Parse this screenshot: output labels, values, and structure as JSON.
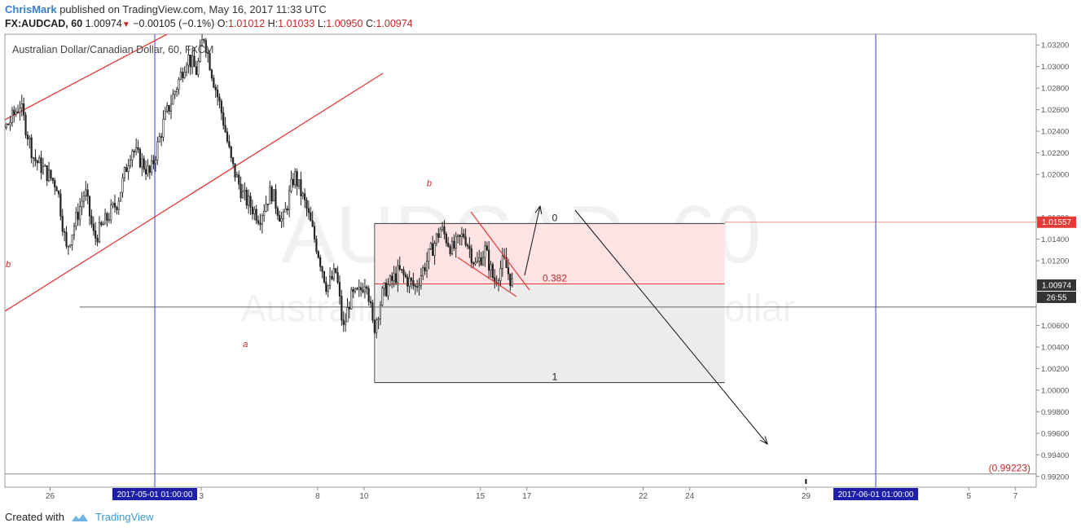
{
  "header": {
    "author": "ChrisMark",
    "published_text": "published on TradingView.com, May 16, 2017 11:33 UTC",
    "symbol": "FX:AUDCAD, 60",
    "last": "1.00974",
    "change": "−0.00105 (−0.1%)",
    "open_label": "O:",
    "open": "1.01012",
    "high_label": "H:",
    "high": "1.01033",
    "low_label": "L:",
    "low": "1.00950",
    "close_label": "C:",
    "close": "1.00974"
  },
  "footer": {
    "created_with": "Created with",
    "brand": "TradingView"
  },
  "colors": {
    "down_marker": "#c62828",
    "candles": "#222222",
    "channel": "#e53935",
    "vertical_lines": "#3f3fd8",
    "fib_top_zone": "#fde3e3",
    "fib_bottom_zone": "#ececec",
    "price_badge_red": "#e53935",
    "price_badge_dark": "#333333",
    "date_badge": "#1e1ea8"
  },
  "chart_data": {
    "type": "candlestick",
    "title": "Australian Dollar/Canadian Dollar, 60, FXCM",
    "watermark_symbol": "AUDCAD, 60",
    "watermark_name": "Australian Dollar/Canadian Dollar",
    "ylim": [
      0.991,
      1.033
    ],
    "y_ticks": [
      "1.03200",
      "1.03000",
      "1.02800",
      "1.02600",
      "1.02400",
      "1.02200",
      "1.02000",
      "1.01600",
      "1.01400",
      "1.01200",
      "1.00600",
      "1.00400",
      "1.00200",
      "1.00000",
      "0.99800",
      "0.99600",
      "0.99400",
      "0.99200"
    ],
    "x_ticks": [
      {
        "label": "26",
        "day": -4.5
      },
      {
        "label": "3",
        "day": 2
      },
      {
        "label": "8",
        "day": 7
      },
      {
        "label": "10",
        "day": 9
      },
      {
        "label": "15",
        "day": 14
      },
      {
        "label": "17",
        "day": 16
      },
      {
        "label": "22",
        "day": 21
      },
      {
        "label": "24",
        "day": 23
      },
      {
        "label": "29",
        "day": 28
      },
      {
        "label": "5",
        "day": 35
      },
      {
        "label": "7",
        "day": 37
      }
    ],
    "date_badges": [
      {
        "label": "2017-05-01 01:00:00",
        "day": 0
      },
      {
        "label": "2017-06-01 01:00:00",
        "day": 31
      }
    ],
    "price_badges": [
      {
        "label": "1.01557",
        "value": 1.01557,
        "color": "red"
      },
      {
        "label": "1.00974",
        "value": 1.00974,
        "color": "dark"
      },
      {
        "label": "26:55",
        "value": 1.00974,
        "color": "dark",
        "offset": 1
      }
    ],
    "target_label": "(0.99223)",
    "target_value": 0.99223,
    "fib": {
      "start_day": 9.45,
      "end_day": 24.5,
      "level_0": {
        "label": "0",
        "value": 1.01545
      },
      "level_0382": {
        "label": "0.382",
        "value": 1.00985
      },
      "level_1": {
        "label": "1",
        "value": 1.0007
      }
    },
    "horizontal_line": 1.0077,
    "wave_labels": [
      {
        "label": "b",
        "day": -6.3,
        "value": 1.0114
      },
      {
        "label": "a",
        "day": 3.9,
        "value": 1.004
      },
      {
        "label": "b",
        "day": 11.8,
        "value": 1.0189
      }
    ],
    "price_path": [
      {
        "day": -7.8,
        "value": 1.0195
      },
      {
        "day": -7.0,
        "value": 1.0225
      },
      {
        "day": -6.2,
        "value": 1.025
      },
      {
        "day": -5.8,
        "value": 1.0265
      },
      {
        "day": -5.2,
        "value": 1.0215
      },
      {
        "day": -4.2,
        "value": 1.019
      },
      {
        "day": -3.8,
        "value": 1.013
      },
      {
        "day": -3.0,
        "value": 1.0185
      },
      {
        "day": -2.6,
        "value": 1.014
      },
      {
        "day": -1.6,
        "value": 1.0175
      },
      {
        "day": -1.0,
        "value": 1.0225
      },
      {
        "day": -0.2,
        "value": 1.02
      },
      {
        "day": 0.4,
        "value": 1.025
      },
      {
        "day": 1.0,
        "value": 1.0285
      },
      {
        "day": 1.4,
        "value": 1.031
      },
      {
        "day": 1.8,
        "value": 1.0295
      },
      {
        "day": 2.1,
        "value": 1.033
      },
      {
        "day": 2.5,
        "value": 1.029
      },
      {
        "day": 2.9,
        "value": 1.0255
      },
      {
        "day": 3.3,
        "value": 1.021
      },
      {
        "day": 3.8,
        "value": 1.018
      },
      {
        "day": 4.5,
        "value": 1.016
      },
      {
        "day": 5.0,
        "value": 1.0185
      },
      {
        "day": 5.5,
        "value": 1.0155
      },
      {
        "day": 6.0,
        "value": 1.02
      },
      {
        "day": 6.5,
        "value": 1.017
      },
      {
        "day": 7.0,
        "value": 1.013
      },
      {
        "day": 7.4,
        "value": 1.0095
      },
      {
        "day": 7.8,
        "value": 1.011
      },
      {
        "day": 8.1,
        "value": 1.0055
      },
      {
        "day": 8.4,
        "value": 1.0085
      },
      {
        "day": 8.8,
        "value": 1.009
      },
      {
        "day": 9.1,
        "value": 1.0105
      },
      {
        "day": 9.4,
        "value": 1.0055
      },
      {
        "day": 9.8,
        "value": 1.009
      },
      {
        "day": 10.5,
        "value": 1.011
      },
      {
        "day": 11.2,
        "value": 1.0095
      },
      {
        "day": 11.9,
        "value": 1.013
      },
      {
        "day": 12.3,
        "value": 1.015
      },
      {
        "day": 12.8,
        "value": 1.013
      },
      {
        "day": 13.3,
        "value": 1.0145
      },
      {
        "day": 13.8,
        "value": 1.0115
      },
      {
        "day": 14.2,
        "value": 1.013
      },
      {
        "day": 14.6,
        "value": 1.01
      },
      {
        "day": 15.0,
        "value": 1.012
      },
      {
        "day": 15.4,
        "value": 1.0097
      }
    ]
  }
}
